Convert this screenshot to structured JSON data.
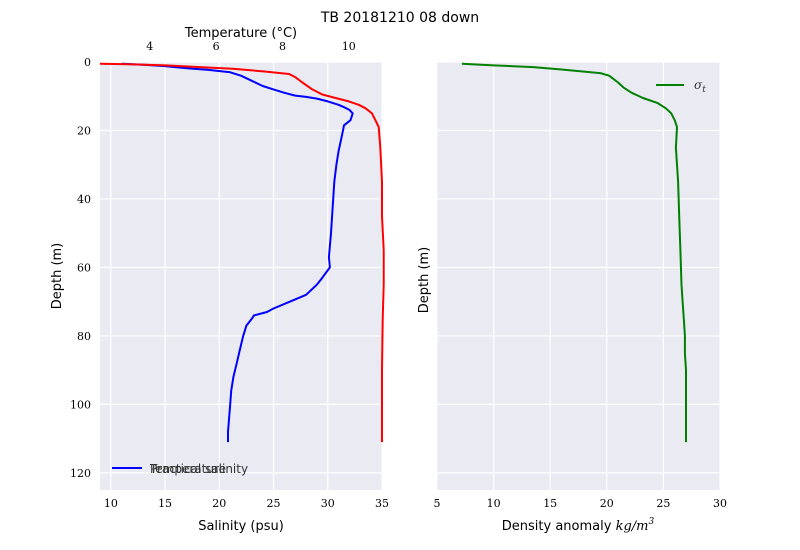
{
  "title": "TB 20181210  08 down",
  "chart_data": [
    {
      "type": "line",
      "ylabel": "Depth (m)",
      "ylim": [
        125,
        0
      ],
      "yticks": [
        0,
        20,
        40,
        60,
        80,
        100,
        120
      ],
      "bottom_axis": {
        "label": "Salinity (psu)",
        "lim": [
          9,
          35
        ],
        "ticks": [
          10,
          15,
          20,
          25,
          30,
          35
        ]
      },
      "top_axis": {
        "label": "Temperature (°C)",
        "lim": [
          2.5,
          11
        ],
        "ticks": [
          4,
          6,
          8,
          10
        ]
      },
      "legend": {
        "placement": "lower-left",
        "overlapping_labels": [
          "Practical salinity",
          "Temperature"
        ]
      },
      "series": [
        {
          "name": "Practical salinity",
          "color": "#0000ff",
          "axis": "bottom",
          "x": [
            11,
            13,
            15,
            17,
            19,
            21,
            22,
            23,
            24,
            25,
            26,
            27,
            28,
            29,
            30,
            31,
            31.5,
            32,
            32.3,
            32.1,
            31.5,
            31.4,
            31.2,
            31,
            30.8,
            30.6,
            30.5,
            30.4,
            30.3,
            30.1,
            30.2,
            29.5,
            29,
            28,
            26.5,
            25,
            24.4,
            23.2,
            23,
            22.5,
            22.2,
            21.9,
            21.6,
            21.3,
            21.1,
            21,
            20.9,
            20.8,
            20.8
          ],
          "y": [
            0.5,
            0.8,
            1.2,
            1.8,
            2.3,
            3,
            4,
            5.5,
            7,
            8,
            9,
            9.8,
            10.2,
            10.7,
            11.5,
            12.5,
            13.2,
            14,
            15,
            17,
            18.5,
            20,
            23,
            26,
            30,
            35,
            40,
            45,
            50,
            57,
            60,
            63,
            65,
            68,
            70,
            72,
            73,
            74,
            75,
            77,
            80,
            84,
            88,
            92,
            96,
            100,
            104,
            108,
            111
          ]
        },
        {
          "name": "Temperature",
          "color": "#ff0000",
          "axis": "top",
          "x": [
            2.5,
            3.5,
            4.5,
            5.5,
            6.5,
            7.5,
            8.2,
            8.4,
            8.6,
            8.9,
            9.2,
            9.6,
            10,
            10.3,
            10.5,
            10.7,
            10.8,
            10.9,
            10.95,
            11,
            11,
            11.05,
            11.05,
            11.02,
            11,
            11,
            11
          ],
          "y": [
            0.5,
            0.7,
            1.0,
            1.5,
            2,
            2.8,
            3.5,
            4.5,
            6,
            8,
            9.5,
            10.5,
            11.5,
            12.5,
            13.5,
            15,
            17,
            19,
            25,
            35,
            45,
            55,
            65,
            75,
            90,
            100,
            111
          ]
        }
      ]
    },
    {
      "type": "line",
      "ylabel": "Depth (m)",
      "xlabel_text": "Density anomaly ",
      "xlabel_math": "kg/m",
      "xlabel_sup": "3",
      "xlim": [
        5,
        30
      ],
      "xticks": [
        5,
        10,
        15,
        20,
        25,
        30
      ],
      "ylim": [
        125,
        0
      ],
      "legend": {
        "placement": "upper-right"
      },
      "series": [
        {
          "name": "σt",
          "legend_symbol": "σ",
          "legend_sub": "t",
          "color": "#008000",
          "x": [
            7.2,
            10,
            13.5,
            16,
            18,
            19.5,
            20.2,
            20.6,
            21,
            21.5,
            22.2,
            23.2,
            24.5,
            25.2,
            25.7,
            26,
            26.2,
            26.1,
            26.3,
            26.4,
            26.5,
            26.6,
            26.7,
            26.8,
            26.9,
            26.9,
            27,
            27,
            27
          ],
          "y": [
            0.5,
            1,
            1.5,
            2.2,
            2.8,
            3.3,
            4,
            5,
            6,
            7.5,
            9,
            10.5,
            12,
            13.5,
            15,
            17,
            19,
            25,
            35,
            45,
            55,
            65,
            70,
            75,
            80,
            85,
            90,
            100,
            111
          ]
        }
      ]
    }
  ]
}
